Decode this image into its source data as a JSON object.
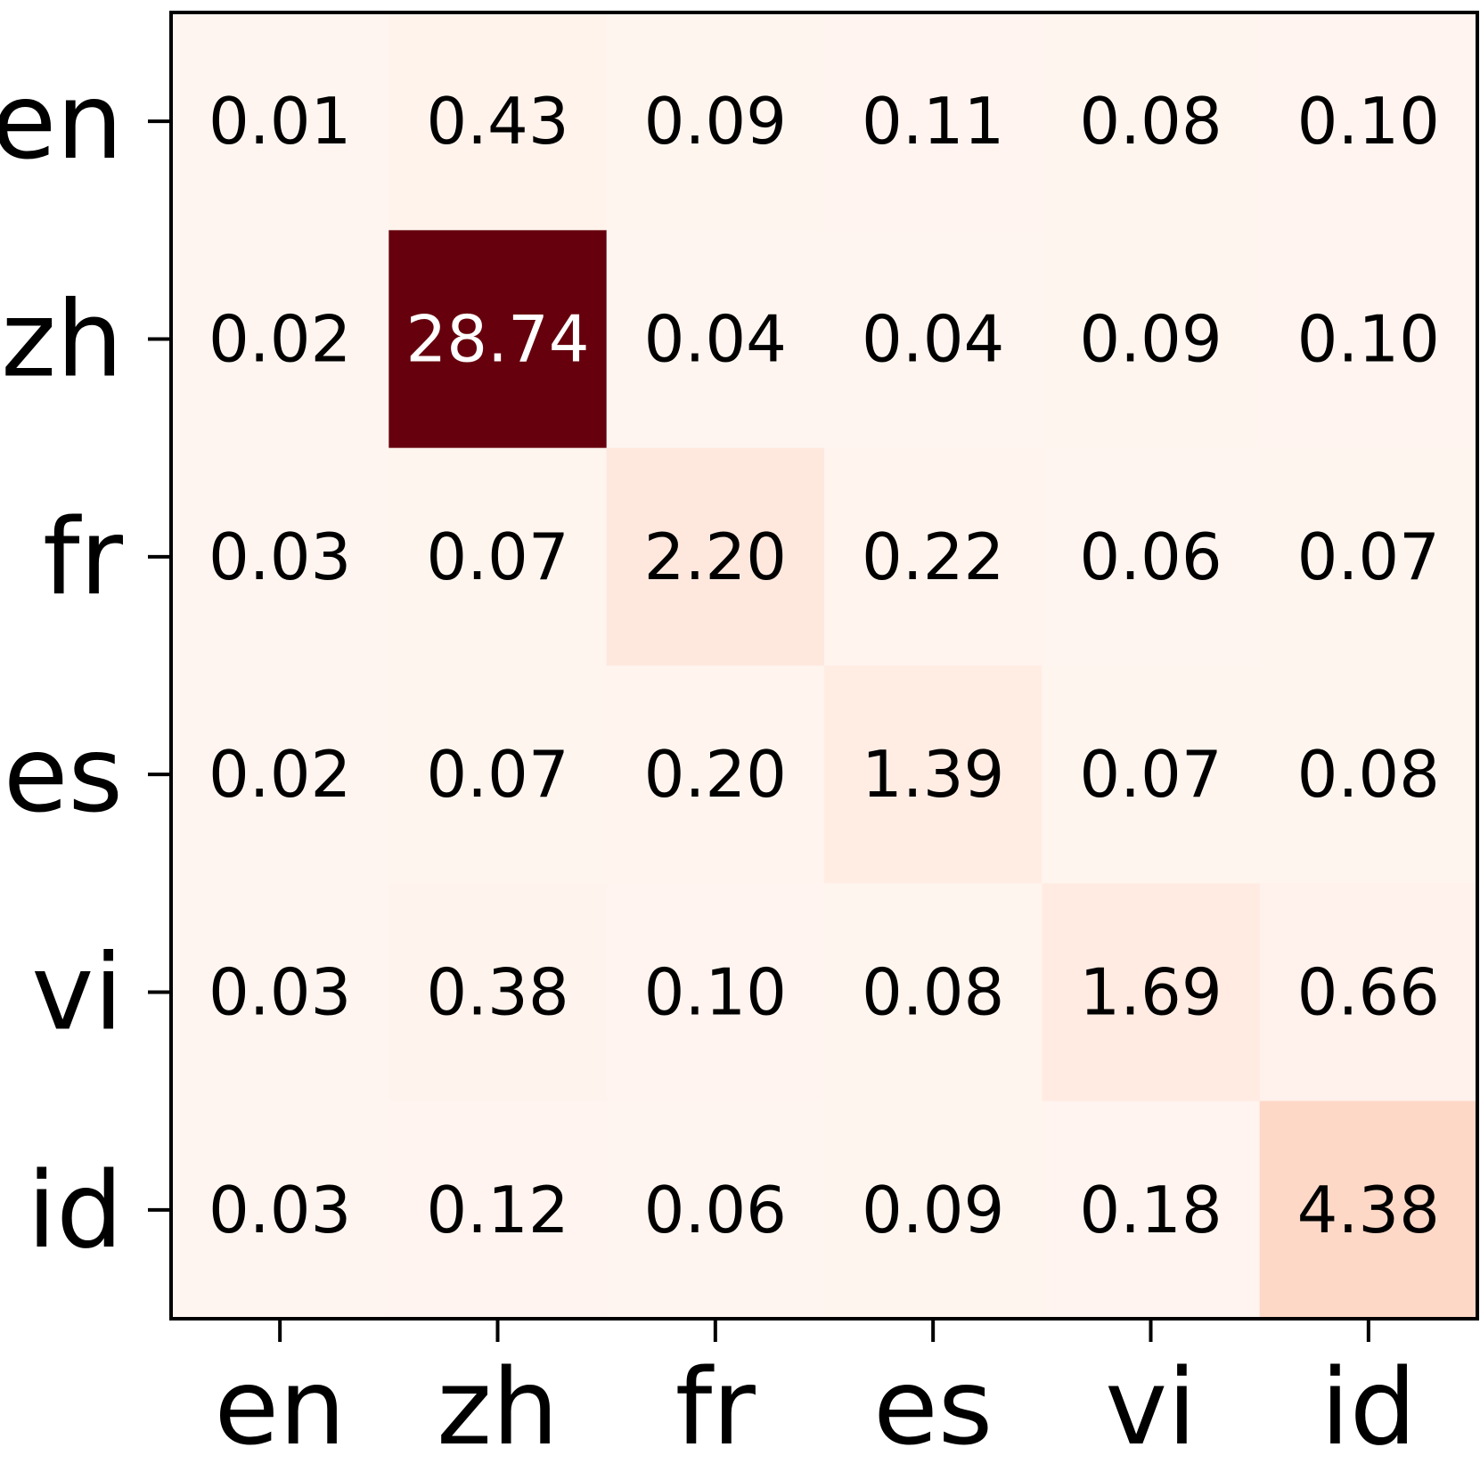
{
  "chart_data": {
    "type": "heatmap",
    "title": "",
    "xlabel": "",
    "ylabel": "",
    "x_categories": [
      "en",
      "zh",
      "fr",
      "es",
      "vi",
      "id"
    ],
    "y_categories": [
      "en",
      "zh",
      "fr",
      "es",
      "vi",
      "id"
    ],
    "values": [
      [
        0.01,
        0.43,
        0.09,
        0.11,
        0.08,
        0.1
      ],
      [
        0.02,
        28.74,
        0.04,
        0.04,
        0.09,
        0.1
      ],
      [
        0.03,
        0.07,
        2.2,
        0.22,
        0.06,
        0.07
      ],
      [
        0.02,
        0.07,
        0.2,
        1.39,
        0.07,
        0.08
      ],
      [
        0.03,
        0.38,
        0.1,
        0.08,
        1.69,
        0.66
      ],
      [
        0.03,
        0.12,
        0.06,
        0.09,
        0.18,
        4.38
      ]
    ],
    "value_format": "2 decimals",
    "colormap": "Reds",
    "colormap_colors": [
      "#fff5f0",
      "#fee0d2",
      "#fcbba1",
      "#fc9272",
      "#fb6a4a",
      "#ef3b2c",
      "#cb181d",
      "#a50f15",
      "#67000d"
    ],
    "vmin": 0.01,
    "vmax": 28.74,
    "colorbar": false,
    "grid": false
  }
}
